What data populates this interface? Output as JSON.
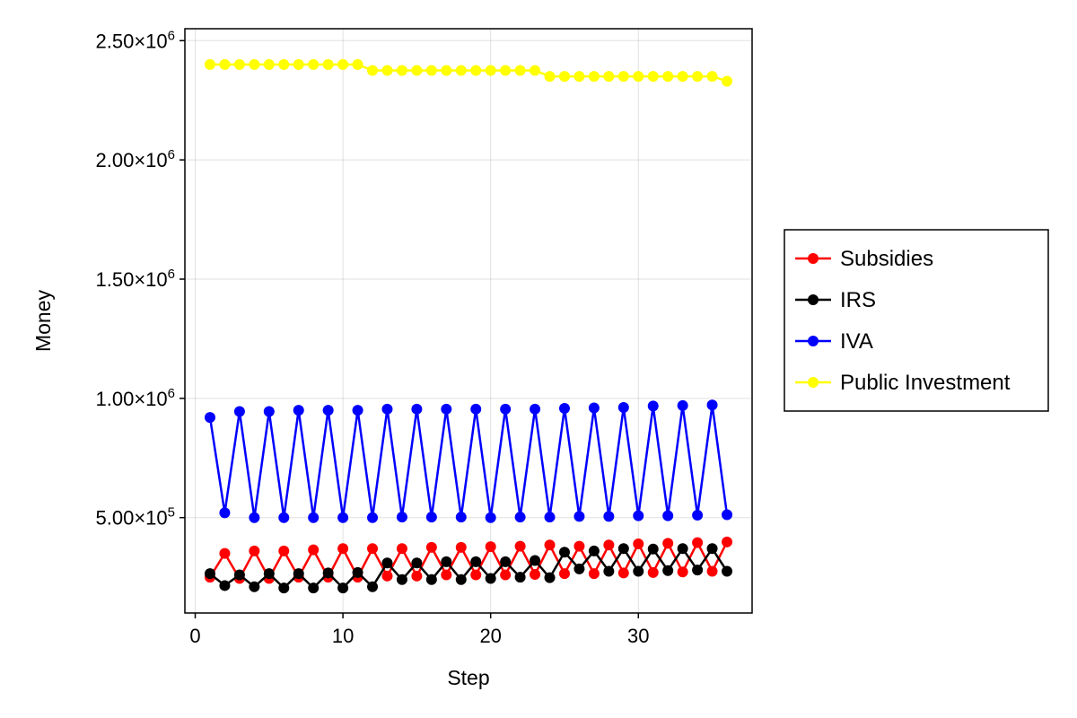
{
  "chart_data": {
    "type": "line",
    "xlabel": "Step",
    "ylabel": "Money",
    "xlim": [
      -0.7,
      37.7
    ],
    "ylim": [
      100000,
      2550000
    ],
    "x_ticks": [
      0,
      10,
      20,
      30
    ],
    "x_tick_labels": [
      "0",
      "10",
      "20",
      "30"
    ],
    "y_ticks": [
      500000,
      1000000,
      1500000,
      2000000,
      2500000
    ],
    "y_tick_mantissas": [
      "5.00",
      "1.00",
      "1.50",
      "2.00",
      "2.50"
    ],
    "y_tick_times": "×10",
    "y_tick_exponents": [
      "5",
      "6",
      "6",
      "6",
      "6"
    ],
    "grid": true,
    "legend_position": "right",
    "x": [
      1,
      2,
      3,
      4,
      5,
      6,
      7,
      8,
      9,
      10,
      11,
      12,
      13,
      14,
      15,
      16,
      17,
      18,
      19,
      20,
      21,
      22,
      23,
      24,
      25,
      26,
      27,
      28,
      29,
      30,
      31,
      32,
      33,
      34,
      35,
      36
    ],
    "series": [
      {
        "name": "Subsidies",
        "color": "#ff0000",
        "values": [
          250000,
          350000,
          245000,
          360000,
          245000,
          360000,
          250000,
          365000,
          250000,
          370000,
          250000,
          370000,
          255000,
          370000,
          255000,
          375000,
          260000,
          375000,
          260000,
          378000,
          260000,
          380000,
          262000,
          385000,
          265000,
          380000,
          265000,
          385000,
          268000,
          390000,
          270000,
          392000,
          272000,
          395000,
          275000,
          398000
        ]
      },
      {
        "name": "IRS",
        "color": "#000000",
        "values": [
          265000,
          215000,
          260000,
          210000,
          265000,
          205000,
          265000,
          205000,
          268000,
          205000,
          270000,
          210000,
          310000,
          240000,
          310000,
          240000,
          315000,
          240000,
          315000,
          245000,
          315000,
          250000,
          320000,
          248000,
          355000,
          285000,
          360000,
          275000,
          370000,
          275000,
          368000,
          278000,
          370000,
          280000,
          370000,
          275000
        ]
      },
      {
        "name": "IVA",
        "color": "#0000ff",
        "values": [
          920000,
          520000,
          945000,
          500000,
          945000,
          500000,
          950000,
          500000,
          950000,
          500000,
          950000,
          500000,
          955000,
          502000,
          955000,
          502000,
          955000,
          502000,
          955000,
          500000,
          955000,
          502000,
          955000,
          502000,
          958000,
          505000,
          960000,
          505000,
          962000,
          508000,
          968000,
          508000,
          970000,
          510000,
          972000,
          512000
        ]
      },
      {
        "name": "Public Investment",
        "color": "#ffff00",
        "values": [
          2400000,
          2400000,
          2400000,
          2400000,
          2400000,
          2400000,
          2400000,
          2400000,
          2400000,
          2400000,
          2400000,
          2375000,
          2375000,
          2375000,
          2375000,
          2375000,
          2375000,
          2375000,
          2375000,
          2375000,
          2375000,
          2375000,
          2375000,
          2350000,
          2350000,
          2350000,
          2350000,
          2350000,
          2350000,
          2350000,
          2350000,
          2350000,
          2350000,
          2350000,
          2350000,
          2330000
        ]
      }
    ]
  }
}
